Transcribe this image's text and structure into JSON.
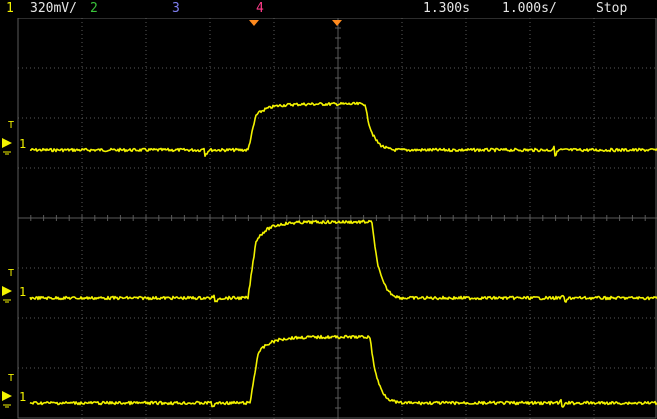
{
  "status_bar": {
    "ch1_number": "1",
    "ch1_scale": "320mV/",
    "ch2_number": "2",
    "ch3_number": "3",
    "ch4_number": "4",
    "time_position": "1.300s",
    "time_scale": "1.000s/",
    "run_state": "Stop"
  },
  "colors": {
    "ch1": "#f2f200",
    "ch2": "#39c43a",
    "ch3": "#7f7ff0",
    "ch4": "#ff3c8a",
    "grid": "#5a5a5a",
    "trigger_marker": "#ff8a1e"
  },
  "channel_markers": {
    "channel_label": "1",
    "trigger_label": "T"
  },
  "traces": [
    {
      "name": "upper",
      "baseline_level": 0.0,
      "pulse_level": 1.0
    },
    {
      "name": "middle",
      "baseline_level": 0.0,
      "pulse_level": 1.0
    },
    {
      "name": "lower",
      "baseline_level": 0.0,
      "pulse_level": 1.0
    }
  ]
}
